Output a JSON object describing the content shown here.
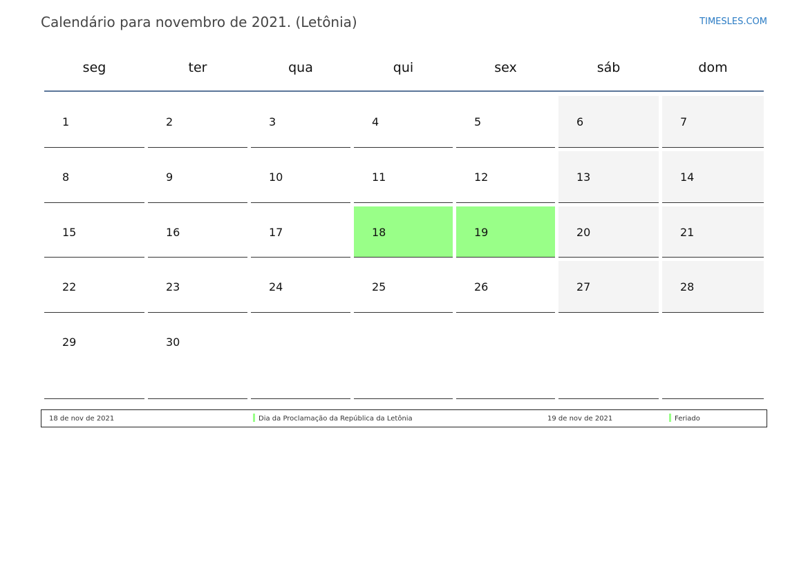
{
  "header": {
    "title": "Calendário para novembro de 2021. (Letônia)",
    "brand": "TIMESLES.COM"
  },
  "weekdays": [
    "seg",
    "ter",
    "qua",
    "qui",
    "sex",
    "sáb",
    "dom"
  ],
  "weeks": [
    [
      "1",
      "2",
      "3",
      "4",
      "5",
      "6",
      "7"
    ],
    [
      "8",
      "9",
      "10",
      "11",
      "12",
      "13",
      "14"
    ],
    [
      "15",
      "16",
      "17",
      "18",
      "19",
      "20",
      "21"
    ],
    [
      "22",
      "23",
      "24",
      "25",
      "26",
      "27",
      "28"
    ],
    [
      "29",
      "30",
      "",
      "",
      "",
      "",
      ""
    ]
  ],
  "holidays": [
    "18",
    "19"
  ],
  "colors": {
    "holiday": "#99ff88",
    "weekend": "#f4f4f4",
    "header_rule": "#5a7599",
    "brand": "#2a7bc4"
  },
  "legend": [
    {
      "date": "18 de nov de 2021",
      "name": "Dia da Proclamação da República da Letônia"
    },
    {
      "date": "19 de nov de 2021",
      "name": "Feriado"
    }
  ]
}
